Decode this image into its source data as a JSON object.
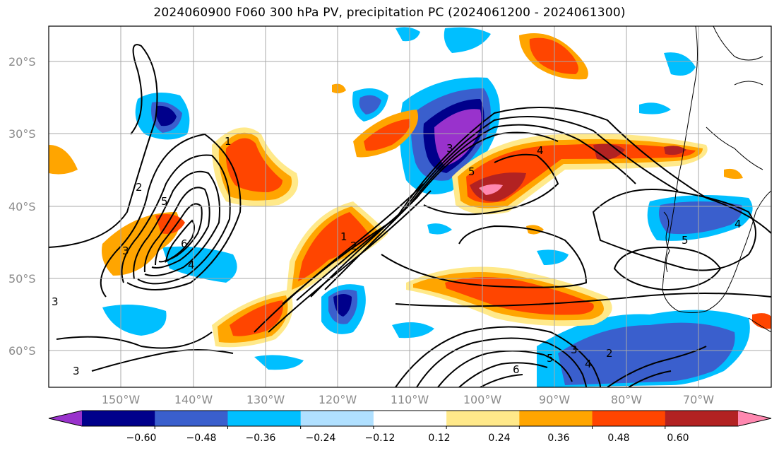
{
  "title": "2024060900 F060 300 hPa PV, precipitation PC (2024061200 - 2024061300)",
  "latitudes": [
    "20°S",
    "30°S",
    "40°S",
    "50°S",
    "60°S"
  ],
  "longitudes": [
    "150°W",
    "140°W",
    "130°W",
    "120°W",
    "110°W",
    "100°W",
    "90°W",
    "80°W",
    "70°W"
  ],
  "colorbar": {
    "colors": [
      "#9932cc",
      "#00008b",
      "#3a5fcd",
      "#00bfff",
      "#b0e0ff",
      "#ffffff",
      "#ffe98a",
      "#ffa500",
      "#ff4500",
      "#b22222",
      "#ff88b0"
    ],
    "tick_labels": [
      "−0.60",
      "−0.48",
      "−0.36",
      "−0.24",
      "−0.12",
      "0.12",
      "0.24",
      "0.36",
      "0.48",
      "0.60"
    ]
  },
  "contour_labels": [
    "1",
    "2",
    "3",
    "4",
    "5",
    "6",
    "3",
    "4",
    "5",
    "3",
    "1",
    "2",
    "4",
    "2",
    "3",
    "4",
    "5",
    "6",
    "5",
    "3"
  ]
}
